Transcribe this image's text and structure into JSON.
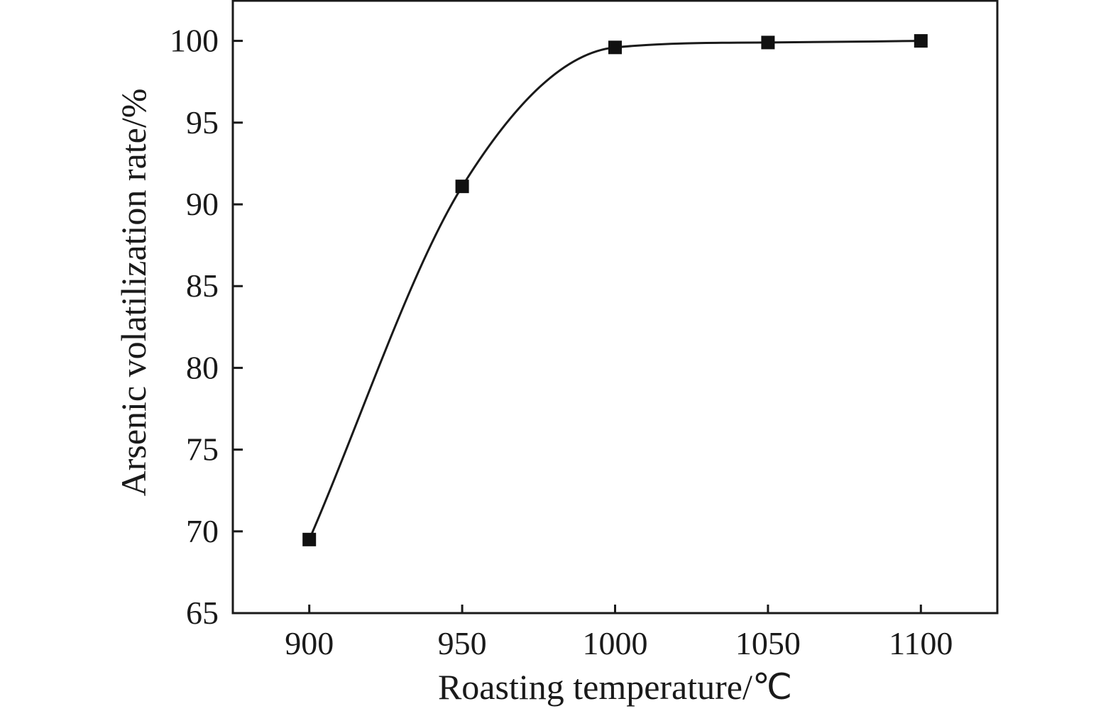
{
  "chart_data": {
    "type": "scatter",
    "title": "",
    "xlabel": "Roasting temperature/℃",
    "ylabel": "Arsenic volatilization rate/%",
    "x_ticks": [
      900,
      950,
      1000,
      1050,
      1100
    ],
    "y_ticks": [
      65,
      70,
      75,
      80,
      85,
      90,
      95,
      100
    ],
    "xlim": [
      875,
      1125
    ],
    "ylim": [
      65,
      102.5
    ],
    "grid": false,
    "legend": "none",
    "marker": "square",
    "fit_line": "smooth sigmoid curve through points",
    "series": [
      {
        "x": [
          900,
          950,
          1000,
          1050,
          1100
        ],
        "y": [
          69.5,
          91.1,
          99.6,
          99.9,
          100.0
        ]
      }
    ],
    "colors": {
      "line": "#1a1a1a",
      "marker": "#111111",
      "axis": "#1a1a1a"
    }
  }
}
